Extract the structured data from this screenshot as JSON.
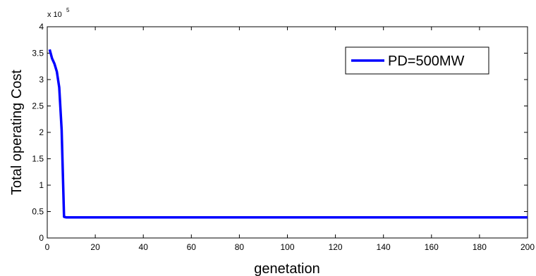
{
  "chart_data": {
    "type": "line",
    "title": "",
    "xlabel": "genetation",
    "ylabel": "Total operating Cost",
    "xlim": [
      0,
      200
    ],
    "ylim": [
      0,
      4
    ],
    "y_multiplier": "x 10",
    "y_multiplier_exponent": "5",
    "xticks": [
      0,
      20,
      40,
      60,
      80,
      100,
      120,
      140,
      160,
      180,
      200
    ],
    "yticks": [
      0,
      0.5,
      1,
      1.5,
      2,
      2.5,
      3,
      3.5,
      4
    ],
    "grid": false,
    "legend": {
      "placement": "top-right"
    },
    "series": [
      {
        "name": "PD=500MW",
        "color": "#0000ff",
        "x": [
          1,
          2,
          3,
          4,
          5,
          6,
          7,
          8,
          10,
          20,
          50,
          100,
          150,
          200
        ],
        "y": [
          3.57,
          3.4,
          3.3,
          3.15,
          2.85,
          2.05,
          0.4,
          0.39,
          0.39,
          0.39,
          0.39,
          0.39,
          0.39,
          0.39
        ]
      }
    ]
  }
}
